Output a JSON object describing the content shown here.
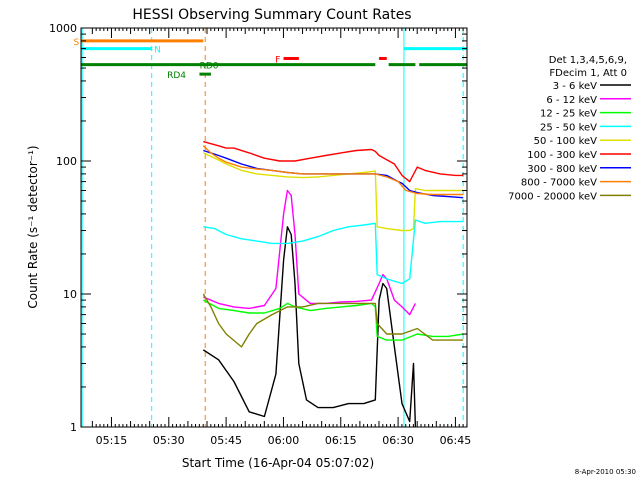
{
  "chart_data": {
    "type": "line",
    "title": "HESSI Observing Summary Count Rates",
    "xlabel": "Start Time (16-Apr-04 05:07:02)",
    "ylabel": "Count Rate (s⁻¹ detector⁻¹)",
    "y_scale": "log",
    "ylim": [
      1,
      1000
    ],
    "xlim_minutes": [
      0,
      101
    ],
    "x_ticks": [
      {
        "label": "05:15",
        "minute": 7.97
      },
      {
        "label": "05:30",
        "minute": 22.97
      },
      {
        "label": "05:45",
        "minute": 37.97
      },
      {
        "label": "06:00",
        "minute": 52.97
      },
      {
        "label": "06:15",
        "minute": 67.97
      },
      {
        "label": "06:30",
        "minute": 82.97
      },
      {
        "label": "06:45",
        "minute": 97.97
      }
    ],
    "y_ticks": [
      {
        "label": "1",
        "value": 1
      },
      {
        "label": "10",
        "value": 10
      },
      {
        "label": "100",
        "value": 100
      },
      {
        "label": "1000",
        "value": 1000
      }
    ],
    "legend": {
      "header": [
        "Det 1,3,4,5,6,9,",
        "FDecim 1, Att 0"
      ],
      "entries": [
        {
          "name": "3 - 6 keV",
          "color": "#000000"
        },
        {
          "name": "6 - 12 keV",
          "color": "#ff00ff"
        },
        {
          "name": "12 - 25 keV",
          "color": "#00ff00"
        },
        {
          "name": "25 - 50 keV",
          "color": "#00ffff"
        },
        {
          "name": "50 - 100 keV",
          "color": "#e0e000"
        },
        {
          "name": "100 - 300 keV",
          "color": "#ff0000"
        },
        {
          "name": "300 - 800 keV",
          "color": "#0000ff"
        },
        {
          "name": "800 - 7000 keV",
          "color": "#ff8000"
        },
        {
          "name": "7000 - 20000 keV",
          "color": "#808000"
        }
      ]
    },
    "flag_bars": [
      {
        "label": "S",
        "color": "#ff8000",
        "segments": [
          [
            0,
            32
          ]
        ],
        "label_minute": -1.2,
        "level": 800
      },
      {
        "label": "N",
        "color": "#00ffff",
        "segments": [
          [
            0,
            18.5
          ],
          [
            84.5,
            101
          ]
        ],
        "label_minute": 20,
        "level": 700
      },
      {
        "label": "RD0",
        "color": "#008000",
        "segments": [
          [
            0,
            77
          ],
          [
            80.5,
            87.5
          ],
          [
            88.5,
            101
          ]
        ],
        "label_minute": 33.5,
        "level": 530
      },
      {
        "label": "RD4",
        "color": "#008000",
        "segments": [
          [
            31,
            34
          ]
        ],
        "label_minute": 25,
        "level": 450
      },
      {
        "label": "F",
        "color": "#ff0000",
        "segments": [
          [
            53,
            57
          ],
          [
            78,
            80
          ]
        ],
        "label_minute": 51.5,
        "level": 590
      }
    ],
    "vlines": [
      {
        "minute": 0.3,
        "color": "#00ffff",
        "style": "solid"
      },
      {
        "minute": 18.5,
        "color": "#00ffff",
        "style": "dashed"
      },
      {
        "minute": 32.5,
        "color": "#ff8000",
        "style": "dashed"
      },
      {
        "minute": 84.5,
        "color": "#00ffff",
        "style": "solid"
      },
      {
        "minute": 100,
        "color": "#00ffff",
        "style": "dashed"
      }
    ],
    "series": [
      {
        "name": "3 - 6 keV",
        "color": "#000000",
        "points": [
          [
            32,
            3.8
          ],
          [
            36,
            3.2
          ],
          [
            40,
            2.2
          ],
          [
            44,
            1.3
          ],
          [
            48,
            1.2
          ],
          [
            51,
            2.5
          ],
          [
            53,
            18
          ],
          [
            54,
            32
          ],
          [
            55,
            28
          ],
          [
            56,
            12
          ],
          [
            57,
            3
          ],
          [
            59,
            1.6
          ],
          [
            62,
            1.4
          ],
          [
            66,
            1.4
          ],
          [
            70,
            1.5
          ],
          [
            74,
            1.5
          ],
          [
            77,
            1.6
          ],
          [
            78,
            9
          ],
          [
            79,
            12
          ],
          [
            80,
            11
          ],
          [
            82,
            4
          ],
          [
            84,
            1.5
          ],
          [
            86,
            1.1
          ],
          [
            87,
            3
          ],
          [
            87.5,
            1.0
          ]
        ]
      },
      {
        "name": "6 - 12 keV",
        "color": "#ff00ff",
        "points": [
          [
            32,
            9.5
          ],
          [
            36,
            8.5
          ],
          [
            40,
            8.0
          ],
          [
            44,
            7.8
          ],
          [
            48,
            8.2
          ],
          [
            51,
            11
          ],
          [
            53,
            40
          ],
          [
            54,
            60
          ],
          [
            55,
            55
          ],
          [
            56,
            28
          ],
          [
            57,
            10
          ],
          [
            60,
            8.5
          ],
          [
            64,
            8.5
          ],
          [
            68,
            8.7
          ],
          [
            72,
            8.8
          ],
          [
            76,
            9
          ],
          [
            78,
            12
          ],
          [
            79,
            14
          ],
          [
            80,
            13
          ],
          [
            82,
            9
          ],
          [
            84,
            8
          ],
          [
            86,
            7
          ],
          [
            87.5,
            8.5
          ]
        ]
      },
      {
        "name": "12 - 25 keV",
        "color": "#00ff00",
        "points": [
          [
            32,
            9
          ],
          [
            36,
            7.8
          ],
          [
            40,
            7.5
          ],
          [
            44,
            7.2
          ],
          [
            48,
            7.2
          ],
          [
            52,
            7.8
          ],
          [
            54,
            8.5
          ],
          [
            56,
            8
          ],
          [
            60,
            7.5
          ],
          [
            64,
            7.8
          ],
          [
            68,
            8
          ],
          [
            72,
            8.2
          ],
          [
            76,
            8.5
          ],
          [
            77,
            8
          ],
          [
            77.5,
            4.8
          ],
          [
            80,
            4.5
          ],
          [
            84,
            4.5
          ],
          [
            88,
            5
          ],
          [
            92,
            4.8
          ],
          [
            96,
            4.8
          ],
          [
            100,
            5
          ]
        ]
      },
      {
        "name": "25 - 50 keV",
        "color": "#00ffff",
        "points": [
          [
            32,
            32
          ],
          [
            35,
            31
          ],
          [
            38,
            28
          ],
          [
            42,
            26
          ],
          [
            46,
            25
          ],
          [
            50,
            24
          ],
          [
            54,
            24
          ],
          [
            58,
            25
          ],
          [
            62,
            27
          ],
          [
            66,
            30
          ],
          [
            70,
            32
          ],
          [
            74,
            33
          ],
          [
            77,
            34
          ],
          [
            77.5,
            14
          ],
          [
            80,
            13
          ],
          [
            84,
            12
          ],
          [
            86,
            13
          ],
          [
            87.5,
            36
          ],
          [
            90,
            34
          ],
          [
            94,
            35
          ],
          [
            98,
            35
          ],
          [
            100,
            35
          ]
        ]
      },
      {
        "name": "50 - 100 keV",
        "color": "#e0e000",
        "points": [
          [
            32,
            115
          ],
          [
            35,
            105
          ],
          [
            38,
            95
          ],
          [
            42,
            85
          ],
          [
            46,
            80
          ],
          [
            50,
            78
          ],
          [
            54,
            76
          ],
          [
            58,
            75
          ],
          [
            62,
            76
          ],
          [
            66,
            78
          ],
          [
            70,
            80
          ],
          [
            74,
            82
          ],
          [
            77,
            84
          ],
          [
            77.5,
            32
          ],
          [
            80,
            31
          ],
          [
            84,
            30
          ],
          [
            86,
            30
          ],
          [
            87,
            31
          ],
          [
            87.5,
            62
          ],
          [
            90,
            60
          ],
          [
            94,
            60
          ],
          [
            98,
            60
          ],
          [
            100,
            60
          ]
        ]
      },
      {
        "name": "100 - 300 keV",
        "color": "#ff0000",
        "points": [
          [
            32,
            140
          ],
          [
            34,
            135
          ],
          [
            36,
            130
          ],
          [
            38,
            125
          ],
          [
            40,
            125
          ],
          [
            44,
            115
          ],
          [
            48,
            105
          ],
          [
            52,
            100
          ],
          [
            56,
            100
          ],
          [
            60,
            105
          ],
          [
            64,
            110
          ],
          [
            68,
            115
          ],
          [
            72,
            120
          ],
          [
            76,
            122
          ],
          [
            77,
            118
          ],
          [
            78,
            110
          ],
          [
            82,
            95
          ],
          [
            84,
            78
          ],
          [
            86,
            70
          ],
          [
            88,
            90
          ],
          [
            90,
            85
          ],
          [
            94,
            80
          ],
          [
            98,
            78
          ],
          [
            100,
            78
          ]
        ]
      },
      {
        "name": "300 - 800 keV",
        "color": "#0000ff",
        "points": [
          [
            32,
            120
          ],
          [
            34,
            115
          ],
          [
            36,
            110
          ],
          [
            38,
            105
          ],
          [
            42,
            95
          ],
          [
            46,
            88
          ],
          [
            50,
            85
          ],
          [
            54,
            82
          ],
          [
            58,
            80
          ],
          [
            62,
            80
          ],
          [
            66,
            80
          ],
          [
            70,
            80
          ],
          [
            74,
            80
          ],
          [
            77,
            80
          ],
          [
            80,
            78
          ],
          [
            83,
            70
          ],
          [
            84,
            68
          ],
          [
            86,
            60
          ],
          [
            88,
            58
          ],
          [
            92,
            55
          ],
          [
            96,
            54
          ],
          [
            100,
            53
          ]
        ]
      },
      {
        "name": "800 - 7000 keV",
        "color": "#ff8000",
        "points": [
          [
            32,
            130
          ],
          [
            34,
            115
          ],
          [
            36,
            105
          ],
          [
            38,
            98
          ],
          [
            42,
            90
          ],
          [
            46,
            87
          ],
          [
            50,
            85
          ],
          [
            54,
            82
          ],
          [
            58,
            80
          ],
          [
            62,
            80
          ],
          [
            66,
            80
          ],
          [
            70,
            80
          ],
          [
            74,
            80
          ],
          [
            77,
            80
          ],
          [
            80,
            76
          ],
          [
            83,
            70
          ],
          [
            85,
            60
          ],
          [
            88,
            57
          ],
          [
            92,
            56
          ],
          [
            96,
            56
          ],
          [
            100,
            56
          ]
        ]
      },
      {
        "name": "7000 - 20000 keV",
        "color": "#808000",
        "points": [
          [
            32,
            10
          ],
          [
            34,
            8
          ],
          [
            36,
            6
          ],
          [
            38,
            5
          ],
          [
            42,
            4
          ],
          [
            44,
            5
          ],
          [
            46,
            6
          ],
          [
            50,
            7
          ],
          [
            54,
            8
          ],
          [
            58,
            8
          ],
          [
            62,
            8.5
          ],
          [
            66,
            8.5
          ],
          [
            70,
            8.5
          ],
          [
            74,
            8.5
          ],
          [
            77,
            8.5
          ],
          [
            77.5,
            6
          ],
          [
            80,
            5
          ],
          [
            84,
            5
          ],
          [
            88,
            5.5
          ],
          [
            92,
            4.5
          ],
          [
            96,
            4.5
          ],
          [
            100,
            4.5
          ]
        ]
      }
    ]
  },
  "footer": {
    "timestamp": "8-Apr-2010 05:30"
  }
}
